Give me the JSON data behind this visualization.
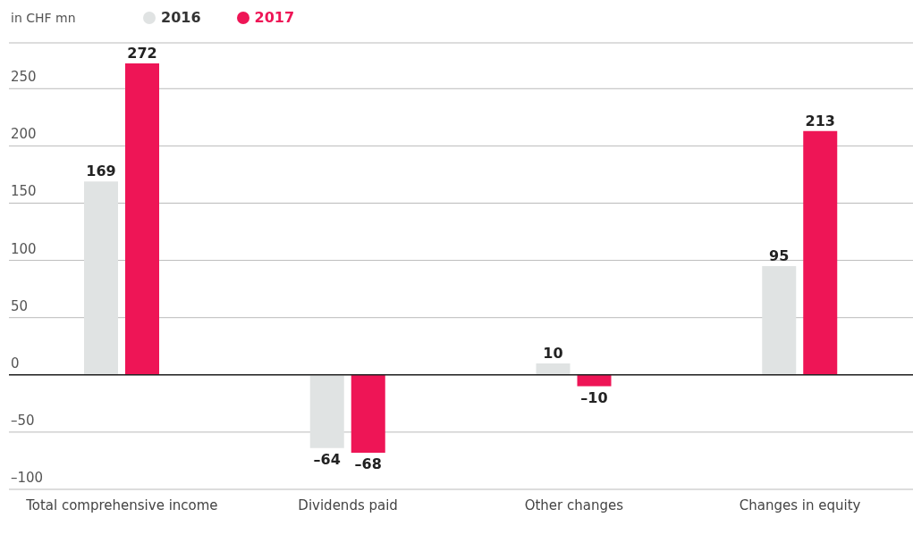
{
  "chart_data": {
    "type": "bar",
    "ylabel": "in CHF mn",
    "categories": [
      "Total comprehensive income",
      "Dividends paid",
      "Other changes",
      "Changes in equity"
    ],
    "series": [
      {
        "name": "2016",
        "color": "#e0e3e3",
        "values": [
          169,
          -64,
          10,
          95
        ],
        "value_labels": [
          "169",
          "–64",
          "10",
          "95"
        ]
      },
      {
        "name": "2017",
        "color": "#ee1556",
        "values": [
          272,
          -68,
          -10,
          213
        ],
        "value_labels": [
          "272",
          "–68",
          "–10",
          "213"
        ]
      }
    ],
    "ylim": [
      -100,
      290
    ],
    "yticks": [
      {
        "value": -100,
        "label": "–100"
      },
      {
        "value": -50,
        "label": "–50"
      },
      0,
      50,
      100,
      150,
      200,
      250
    ],
    "grid": "y",
    "legend": "top left"
  }
}
